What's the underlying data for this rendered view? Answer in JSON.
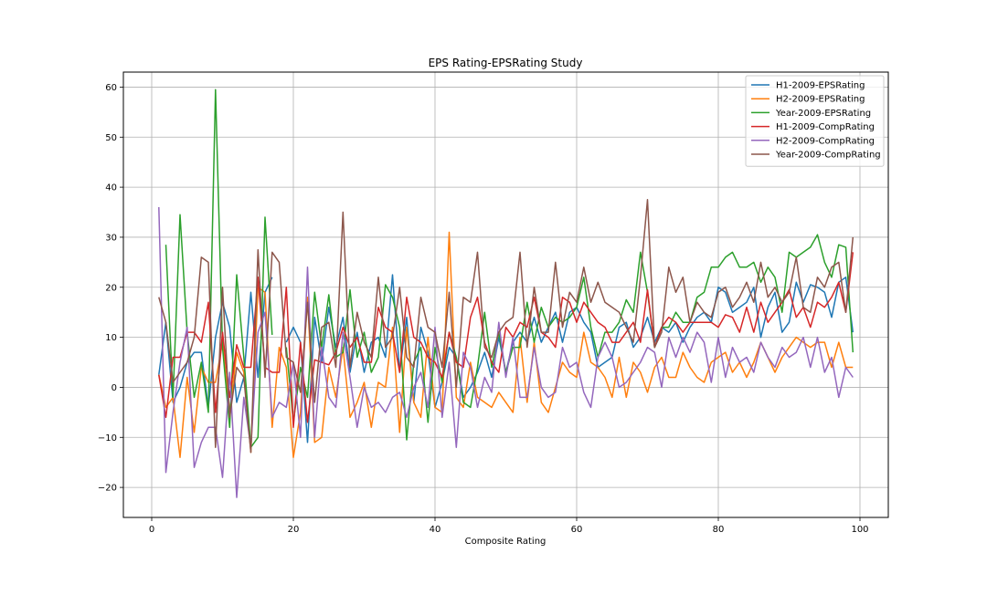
{
  "chart_data": {
    "type": "line",
    "title": "EPS Rating-EPSRating Study",
    "xlabel": "Composite Rating",
    "ylabel": "",
    "xlim": [
      -4,
      104
    ],
    "ylim": [
      -26,
      63
    ],
    "xticks": [
      0,
      20,
      40,
      60,
      80,
      100
    ],
    "yticks": [
      -20,
      -10,
      0,
      10,
      20,
      30,
      40,
      50,
      60
    ],
    "grid": true,
    "legend_position": "top-right",
    "series": [
      {
        "name": "H1-2009-EPSRating",
        "color": "#1f77b4",
        "x": [
          1,
          2,
          3,
          4,
          5,
          6,
          7,
          8,
          9,
          10,
          11,
          12,
          13,
          14,
          15,
          16,
          17,
          18,
          19,
          20,
          21,
          22,
          23,
          24,
          25,
          26,
          27,
          28,
          29,
          30,
          31,
          32,
          33,
          34,
          35,
          36,
          37,
          38,
          39,
          40,
          41,
          42,
          43,
          44,
          45,
          46,
          47,
          48,
          49,
          50,
          51,
          52,
          53,
          54,
          55,
          56,
          57,
          58,
          59,
          60,
          61,
          62,
          63,
          64,
          65,
          66,
          67,
          68,
          69,
          70,
          71,
          72,
          73,
          74,
          75,
          76,
          77,
          78,
          79,
          80,
          81,
          82,
          83,
          84,
          85,
          86,
          87,
          88,
          89,
          90,
          91,
          92,
          93,
          94,
          95,
          96,
          97,
          98,
          99
        ],
        "values": [
          2.5,
          13,
          -3,
          0,
          5,
          7,
          7,
          -4,
          10,
          17,
          12,
          -3,
          2,
          19,
          2,
          19,
          22,
          null,
          9,
          12,
          9,
          -11,
          14,
          5,
          16,
          8,
          14,
          3,
          11,
          3,
          9,
          10,
          6,
          22.5,
          3,
          14,
          -3,
          12,
          7,
          -4,
          1,
          8,
          6,
          -2,
          0,
          3,
          7,
          2,
          10,
          3,
          9,
          11,
          9,
          14,
          9,
          12,
          15,
          9,
          15,
          16,
          13,
          11,
          4,
          5,
          6,
          12,
          13,
          8,
          10,
          14,
          9,
          12,
          11,
          13,
          9,
          12,
          14,
          15,
          13,
          20,
          19,
          15,
          16,
          17,
          20,
          10,
          16,
          19,
          11,
          13,
          21,
          17,
          20.5,
          20,
          19,
          14,
          21,
          22,
          11
        ]
      },
      {
        "name": "H2-2009-EPSRating",
        "color": "#ff7f0e",
        "x": [
          1,
          2,
          3,
          4,
          5,
          6,
          7,
          8,
          9,
          10,
          11,
          12,
          13,
          14,
          15,
          16,
          17,
          18,
          19,
          20,
          21,
          22,
          23,
          24,
          25,
          26,
          27,
          28,
          29,
          30,
          31,
          32,
          33,
          34,
          35,
          36,
          37,
          38,
          39,
          40,
          41,
          42,
          43,
          44,
          45,
          46,
          47,
          48,
          49,
          50,
          51,
          52,
          53,
          54,
          55,
          56,
          57,
          58,
          59,
          60,
          61,
          62,
          63,
          64,
          65,
          66,
          67,
          68,
          69,
          70,
          71,
          72,
          73,
          74,
          75,
          76,
          77,
          78,
          79,
          80,
          81,
          82,
          83,
          84,
          85,
          86,
          87,
          88,
          89,
          90,
          91,
          92,
          93,
          94,
          95,
          96,
          97,
          98,
          99
        ],
        "values": [
          2.5,
          -4,
          -2,
          -14,
          2,
          -9,
          4,
          1,
          1,
          9,
          -5,
          7,
          3,
          -13,
          20,
          19,
          -8,
          8,
          4,
          -14,
          -5,
          18,
          -11,
          -10,
          4,
          -2,
          8,
          -6,
          -3,
          1,
          -8,
          1,
          0,
          12,
          -9,
          12,
          -3,
          -6,
          10,
          -4,
          -5,
          31,
          -2,
          -4,
          5,
          -2,
          -3,
          -4,
          -1,
          -3,
          -5,
          10,
          -3,
          9,
          -3,
          -5,
          0,
          5,
          3,
          2,
          11,
          5,
          4,
          2,
          -2,
          6,
          -2,
          5,
          3,
          -1,
          4,
          6,
          2,
          2,
          7,
          4,
          2,
          1,
          5,
          6,
          7,
          3,
          5,
          2,
          5,
          9,
          6,
          3,
          6,
          8,
          10,
          9,
          8,
          9,
          9,
          4,
          9,
          4,
          4
        ]
      },
      {
        "name": "Year-2009-EPSRating",
        "color": "#2ca02c",
        "x": [
          1,
          2,
          3,
          4,
          5,
          6,
          7,
          8,
          9,
          10,
          11,
          12,
          13,
          14,
          15,
          16,
          17,
          18,
          19,
          20,
          21,
          22,
          23,
          24,
          25,
          26,
          27,
          28,
          29,
          30,
          31,
          32,
          33,
          34,
          35,
          36,
          37,
          38,
          39,
          40,
          41,
          42,
          43,
          44,
          45,
          46,
          47,
          48,
          49,
          50,
          51,
          52,
          53,
          54,
          55,
          56,
          57,
          58,
          59,
          60,
          61,
          62,
          63,
          64,
          65,
          66,
          67,
          68,
          69,
          70,
          71,
          72,
          73,
          74,
          75,
          76,
          77,
          78,
          79,
          80,
          81,
          82,
          83,
          84,
          85,
          86,
          87,
          88,
          89,
          90,
          91,
          92,
          93,
          94,
          95,
          96,
          97,
          98,
          99
        ],
        "values": [
          null,
          28.5,
          -2,
          34.5,
          11,
          -2,
          5,
          -5,
          59.5,
          8,
          -8,
          22.5,
          6,
          -12,
          -10,
          34,
          10.5,
          null,
          8,
          -7,
          4,
          -2,
          19,
          8,
          18.5,
          6,
          7,
          19.5,
          6,
          11,
          3,
          6,
          20.5,
          18,
          12,
          -10.5,
          5,
          8,
          -7,
          8,
          1,
          11,
          6,
          -3,
          -4,
          4,
          15,
          4,
          11,
          3,
          8,
          8,
          17,
          9,
          16,
          12,
          14,
          13,
          14,
          16,
          22,
          12,
          6,
          11,
          11,
          13,
          17.5,
          15,
          27,
          19,
          8,
          12,
          12,
          15,
          13,
          13,
          18,
          19,
          24,
          24,
          26,
          27,
          24,
          24,
          25,
          21,
          24,
          22,
          15,
          27,
          26,
          27,
          28,
          30.5,
          25,
          22,
          28.5,
          28,
          7
        ]
      },
      {
        "name": "H1-2009-CompRating",
        "color": "#d62728",
        "x": [
          1,
          2,
          3,
          4,
          5,
          6,
          7,
          8,
          9,
          10,
          11,
          12,
          13,
          14,
          15,
          16,
          17,
          18,
          19,
          20,
          21,
          22,
          23,
          24,
          25,
          26,
          27,
          28,
          29,
          30,
          31,
          32,
          33,
          34,
          35,
          36,
          37,
          38,
          39,
          40,
          41,
          42,
          43,
          44,
          45,
          46,
          47,
          48,
          49,
          50,
          51,
          52,
          53,
          54,
          55,
          56,
          57,
          58,
          59,
          60,
          61,
          62,
          63,
          64,
          65,
          66,
          67,
          68,
          69,
          70,
          71,
          72,
          73,
          74,
          75,
          76,
          77,
          78,
          79,
          80,
          81,
          82,
          83,
          84,
          85,
          86,
          87,
          88,
          89,
          90,
          91,
          92,
          93,
          94,
          95,
          96,
          97,
          98,
          99
        ],
        "values": [
          2.5,
          -6,
          6,
          6,
          11,
          11,
          9,
          17,
          -5,
          11,
          -2,
          8.5,
          4,
          4,
          22,
          4,
          3,
          3,
          20,
          -8,
          9,
          -7,
          5.5,
          5,
          4.5,
          7,
          12,
          8,
          10,
          5,
          5,
          16,
          12,
          11,
          3,
          18,
          10,
          9,
          6,
          5,
          2,
          11,
          5,
          4,
          14,
          18,
          9,
          5,
          3,
          12,
          10,
          13,
          12,
          18,
          11,
          10,
          8,
          18,
          17,
          13,
          17,
          15,
          13,
          12,
          9,
          9,
          11,
          13,
          9,
          19.5,
          8,
          12,
          14,
          13,
          11,
          13,
          13,
          13,
          13,
          12,
          14.5,
          14,
          11,
          16,
          11,
          17,
          13,
          15,
          17,
          19.5,
          14,
          16,
          12,
          17,
          16,
          18,
          21,
          15,
          27
        ]
      },
      {
        "name": "H2-2009-CompRating",
        "color": "#9467bd",
        "x": [
          1,
          2,
          3,
          4,
          5,
          6,
          7,
          8,
          9,
          10,
          11,
          12,
          13,
          14,
          15,
          16,
          17,
          18,
          19,
          20,
          21,
          22,
          23,
          24,
          25,
          26,
          27,
          28,
          29,
          30,
          31,
          32,
          33,
          34,
          35,
          36,
          37,
          38,
          39,
          40,
          41,
          42,
          43,
          44,
          45,
          46,
          47,
          48,
          49,
          50,
          51,
          52,
          53,
          54,
          55,
          56,
          57,
          58,
          59,
          60,
          61,
          62,
          63,
          64,
          65,
          66,
          67,
          68,
          69,
          70,
          71,
          72,
          73,
          74,
          75,
          76,
          77,
          78,
          79,
          80,
          81,
          82,
          83,
          84,
          85,
          86,
          87,
          88,
          89,
          90,
          91,
          92,
          93,
          94,
          95,
          96,
          97,
          98,
          99
        ],
        "values": [
          36,
          -17,
          -5,
          5,
          12,
          -16,
          -11,
          -8,
          -8,
          -18,
          3,
          -22,
          -2,
          -12,
          11,
          15,
          -6,
          -3,
          -4,
          5,
          -10,
          24,
          -10,
          8,
          -2,
          -4,
          11,
          2,
          -8,
          0,
          -4,
          -3,
          -5,
          -2,
          -1,
          -6,
          0,
          3,
          -4,
          12,
          -6,
          5,
          -12,
          7,
          4,
          -4,
          2,
          -1,
          13,
          2,
          10,
          -2,
          -2,
          8,
          0,
          -2,
          -1,
          8,
          4,
          5,
          -1,
          -4,
          6,
          9,
          6,
          0,
          1,
          3,
          5,
          8,
          7,
          0,
          10,
          6,
          10,
          7,
          11,
          9,
          1,
          10,
          2,
          8,
          5,
          6,
          3,
          9,
          6,
          4,
          8,
          6,
          7,
          10,
          4,
          10,
          3,
          6,
          -2,
          4,
          2
        ]
      },
      {
        "name": "Year-2009-CompRating",
        "color": "#8c564b",
        "x": [
          1,
          2,
          3,
          4,
          5,
          6,
          7,
          8,
          9,
          10,
          11,
          12,
          13,
          14,
          15,
          16,
          17,
          18,
          19,
          20,
          21,
          22,
          23,
          24,
          25,
          26,
          27,
          28,
          29,
          30,
          31,
          32,
          33,
          34,
          35,
          36,
          37,
          38,
          39,
          40,
          41,
          42,
          43,
          44,
          45,
          46,
          47,
          48,
          49,
          50,
          51,
          52,
          53,
          54,
          55,
          56,
          57,
          58,
          59,
          60,
          61,
          62,
          63,
          64,
          65,
          66,
          67,
          68,
          69,
          70,
          71,
          72,
          73,
          74,
          75,
          76,
          77,
          78,
          79,
          80,
          81,
          82,
          83,
          84,
          85,
          86,
          87,
          88,
          89,
          90,
          91,
          92,
          93,
          94,
          95,
          96,
          97,
          98,
          99
        ],
        "values": [
          18,
          13,
          1,
          3,
          5,
          10,
          26,
          25,
          -12,
          20,
          -6,
          4,
          2,
          -13,
          27.5,
          2,
          27,
          25,
          6,
          5,
          -1,
          17,
          -3,
          12,
          13,
          4,
          35,
          4,
          15,
          9,
          6,
          22,
          8,
          10,
          20,
          6,
          4,
          18,
          12,
          11,
          4,
          19,
          0,
          18,
          17,
          27,
          8,
          6,
          11,
          13,
          14,
          27,
          8,
          20,
          11,
          11,
          25,
          12,
          19,
          17,
          24,
          17,
          21,
          17,
          16,
          15,
          12,
          9,
          22,
          37.5,
          8,
          11,
          24,
          19,
          22,
          13,
          17,
          15,
          14,
          19,
          20,
          16,
          18,
          21,
          17,
          25,
          18,
          20,
          17,
          19,
          26,
          16,
          15,
          22,
          20,
          24,
          25,
          15,
          30
        ]
      }
    ]
  }
}
